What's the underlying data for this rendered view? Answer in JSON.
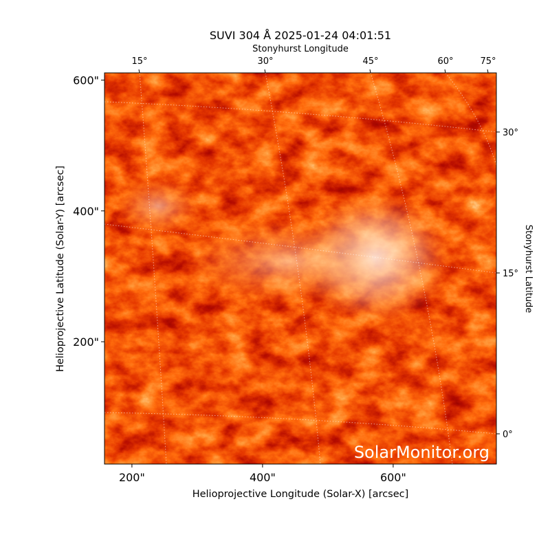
{
  "chart_data": {
    "type": "image",
    "title": "SUVI 304 Å 2025-01-24 04:01:51",
    "xlabel": "Helioprojective Longitude (Solar-X) [arcsec]",
    "ylabel": "Helioprojective Latitude (Solar-Y) [arcsec]",
    "top_label": "Stonyhurst Longitude",
    "right_label": "Stonyhurst Latitude",
    "xlim": [
      158,
      758
    ],
    "ylim": [
      13,
      611
    ],
    "xticks": [
      {
        "value": 200,
        "label": "200\""
      },
      {
        "value": 400,
        "label": "400\""
      },
      {
        "value": 600,
        "label": "600\""
      }
    ],
    "yticks": [
      {
        "value": 200,
        "label": "200\""
      },
      {
        "value": 400,
        "label": "400\""
      },
      {
        "value": 600,
        "label": "600\""
      }
    ],
    "top_ticks": [
      {
        "value": 15,
        "label": "15°"
      },
      {
        "value": 30,
        "label": "30°"
      },
      {
        "value": 45,
        "label": "45°"
      },
      {
        "value": 60,
        "label": "60°"
      },
      {
        "value": 75,
        "label": "75°"
      }
    ],
    "right_ticks": [
      {
        "value": 30,
        "label": "30°"
      },
      {
        "value": 15,
        "label": "15°"
      },
      {
        "value": 0,
        "label": "0°"
      }
    ],
    "watermark": "SolarMonitor.org"
  }
}
